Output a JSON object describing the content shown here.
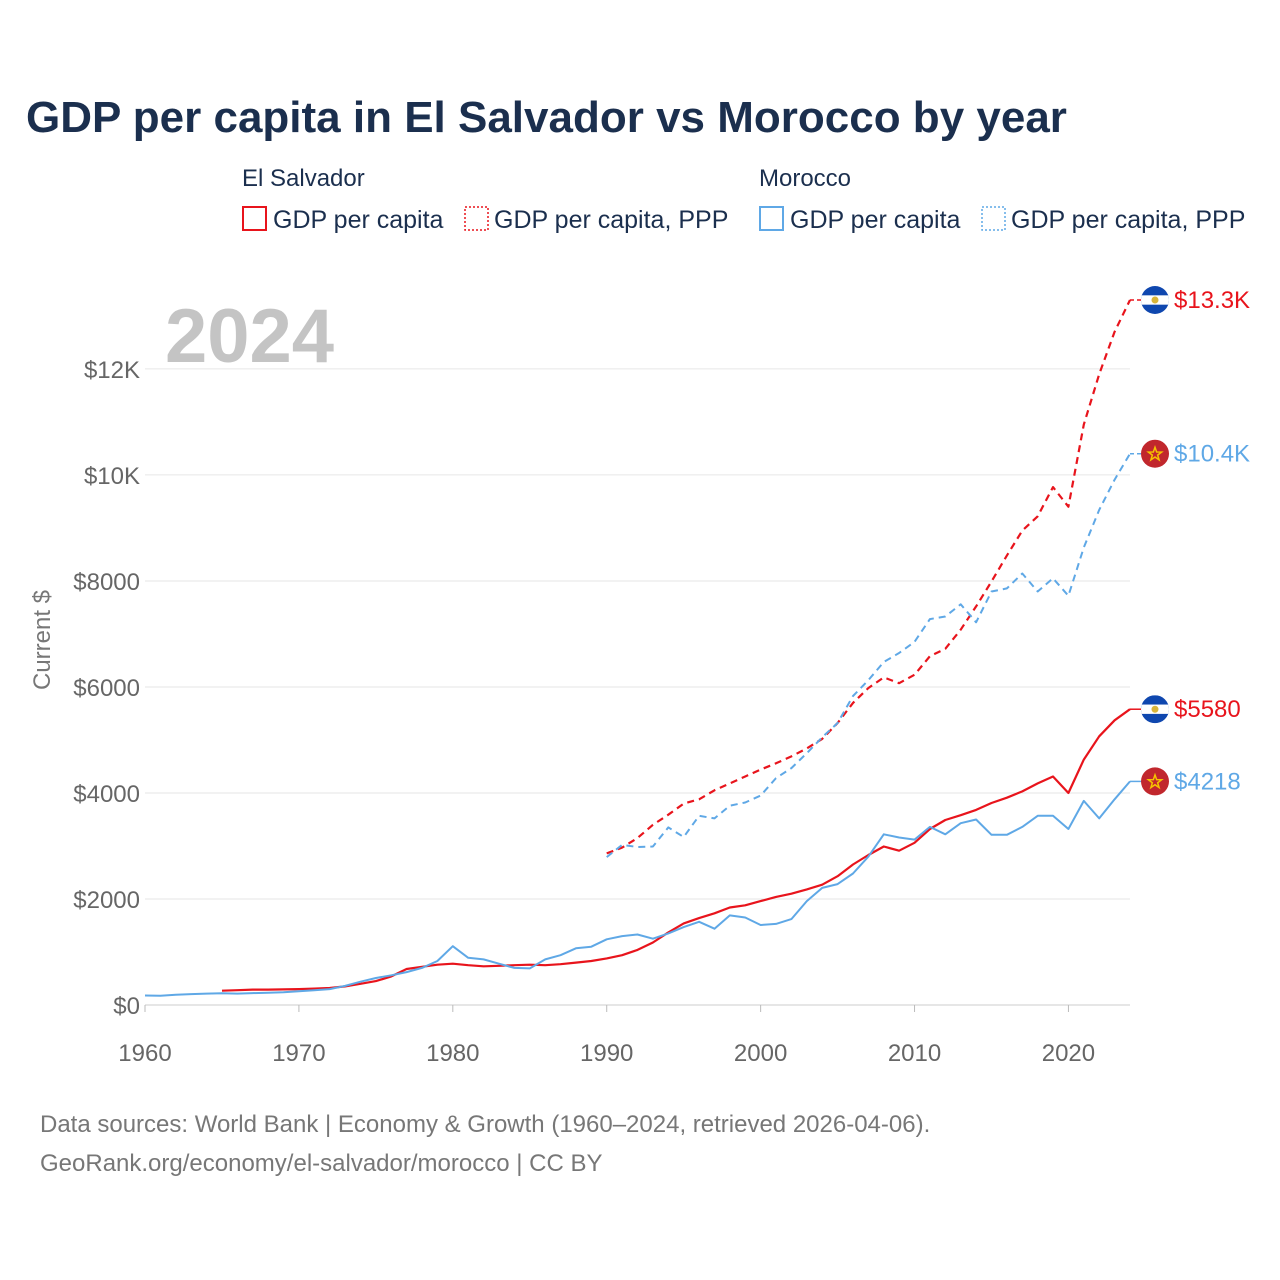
{
  "title": "GDP per capita in El Salvador vs Morocco by year",
  "watermark_year": "2024",
  "legend": {
    "groups": [
      {
        "name": "El Salvador",
        "items": [
          "GDP per capita",
          "GDP per capita, PPP"
        ],
        "color": "#e8141c"
      },
      {
        "name": "Morocco",
        "items": [
          "GDP per capita",
          "GDP per capita, PPP"
        ],
        "color": "#5fa8e6"
      }
    ]
  },
  "end_labels": [
    {
      "text": "$13.3K",
      "series": "El Salvador PPP"
    },
    {
      "text": "$10.4K",
      "series": "Morocco PPP"
    },
    {
      "text": "$5580",
      "series": "El Salvador GDP"
    },
    {
      "text": "$4218",
      "series": "Morocco GDP"
    }
  ],
  "source_lines": [
    "Data sources: World Bank | Economy & Growth (1960–2024, retrieved 2026-04-06).",
    "GeoRank.org/economy/el-salvador/morocco | CC BY"
  ],
  "colors": {
    "el_salvador": "#e8141c",
    "morocco": "#5fa8e6"
  },
  "chart_data": {
    "type": "line",
    "title": "GDP per capita in El Salvador vs Morocco by year",
    "xlabel": "",
    "ylabel": "Current $",
    "xlim": [
      1960,
      2024
    ],
    "ylim": [
      0,
      13300
    ],
    "x_ticks": [
      1960,
      1970,
      1980,
      1990,
      2000,
      2010,
      2020
    ],
    "x_tick_labels": [
      "1960",
      "1970",
      "1980",
      "1990",
      "2000",
      "2010",
      "2020"
    ],
    "y_ticks": [
      0,
      2000,
      4000,
      6000,
      8000,
      10000,
      12000
    ],
    "y_tick_labels": [
      "$0",
      "$2000",
      "$4000",
      "$6000",
      "$8000",
      "$10K",
      "$12K"
    ],
    "grid": true,
    "series": [
      {
        "name": "El Salvador GDP per capita",
        "country": "El Salvador",
        "dashed": false,
        "color": "#e8141c",
        "x": [
          1965,
          1966,
          1967,
          1968,
          1969,
          1970,
          1971,
          1972,
          1973,
          1974,
          1975,
          1976,
          1977,
          1978,
          1979,
          1980,
          1981,
          1982,
          1983,
          1984,
          1985,
          1986,
          1987,
          1988,
          1989,
          1990,
          1991,
          1992,
          1993,
          1994,
          1995,
          1996,
          1997,
          1998,
          1999,
          2000,
          2001,
          2002,
          2003,
          2004,
          2005,
          2006,
          2007,
          2008,
          2009,
          2010,
          2011,
          2012,
          2013,
          2014,
          2015,
          2016,
          2017,
          2018,
          2019,
          2020,
          2021,
          2022,
          2023,
          2024
        ],
        "y": [
          270,
          280,
          290,
          290,
          295,
          300,
          310,
          320,
          350,
          400,
          450,
          540,
          680,
          720,
          760,
          780,
          750,
          730,
          740,
          750,
          760,
          750,
          770,
          800,
          830,
          880,
          940,
          1040,
          1180,
          1370,
          1540,
          1640,
          1730,
          1840,
          1880,
          1960,
          2040,
          2100,
          2180,
          2270,
          2430,
          2650,
          2830,
          2990,
          2910,
          3060,
          3320,
          3490,
          3580,
          3680,
          3810,
          3910,
          4030,
          4180,
          4310,
          4000,
          4630,
          5070,
          5370,
          5580
        ]
      },
      {
        "name": "El Salvador GDP per capita, PPP",
        "country": "El Salvador",
        "dashed": true,
        "color": "#e8141c",
        "x": [
          1990,
          1991,
          1992,
          1993,
          1994,
          1995,
          1996,
          1997,
          1998,
          1999,
          2000,
          2001,
          2002,
          2003,
          2004,
          2005,
          2006,
          2007,
          2008,
          2009,
          2010,
          2011,
          2012,
          2013,
          2014,
          2015,
          2016,
          2017,
          2018,
          2019,
          2020,
          2021,
          2022,
          2023,
          2024
        ],
        "y": [
          2860,
          2970,
          3150,
          3400,
          3590,
          3800,
          3880,
          4050,
          4180,
          4310,
          4440,
          4560,
          4690,
          4840,
          5020,
          5320,
          5700,
          5980,
          6180,
          6070,
          6230,
          6580,
          6720,
          7080,
          7520,
          7990,
          8480,
          8950,
          9220,
          9770,
          9400,
          10950,
          11900,
          12700,
          13300
        ]
      },
      {
        "name": "Morocco GDP per capita",
        "country": "Morocco",
        "dashed": false,
        "color": "#5fa8e6",
        "x": [
          1960,
          1961,
          1962,
          1963,
          1964,
          1965,
          1966,
          1967,
          1968,
          1969,
          1970,
          1971,
          1972,
          1973,
          1974,
          1975,
          1976,
          1977,
          1978,
          1979,
          1980,
          1981,
          1982,
          1983,
          1984,
          1985,
          1986,
          1987,
          1988,
          1989,
          1990,
          1991,
          1992,
          1993,
          1994,
          1995,
          1996,
          1997,
          1998,
          1999,
          2000,
          2001,
          2002,
          2003,
          2004,
          2005,
          2006,
          2007,
          2008,
          2009,
          2010,
          2011,
          2012,
          2013,
          2014,
          2015,
          2016,
          2017,
          2018,
          2019,
          2020,
          2021,
          2022,
          2023,
          2024
        ],
        "y": [
          180,
          175,
          195,
          205,
          215,
          220,
          215,
          225,
          230,
          240,
          260,
          280,
          300,
          360,
          440,
          510,
          560,
          620,
          700,
          830,
          1110,
          890,
          860,
          780,
          700,
          690,
          860,
          940,
          1070,
          1100,
          1240,
          1300,
          1330,
          1250,
          1350,
          1470,
          1570,
          1440,
          1690,
          1650,
          1510,
          1530,
          1620,
          1960,
          2210,
          2280,
          2480,
          2800,
          3220,
          3160,
          3120,
          3360,
          3220,
          3430,
          3500,
          3210,
          3210,
          3360,
          3570,
          3570,
          3320,
          3850,
          3520,
          3880,
          4218
        ]
      },
      {
        "name": "Morocco GDP per capita, PPP",
        "country": "Morocco",
        "dashed": true,
        "color": "#5fa8e6",
        "x": [
          1990,
          1991,
          1992,
          1993,
          1994,
          1995,
          1996,
          1997,
          1998,
          1999,
          2000,
          2001,
          2002,
          2003,
          2004,
          2005,
          2006,
          2007,
          2008,
          2009,
          2010,
          2011,
          2012,
          2013,
          2014,
          2015,
          2016,
          2017,
          2018,
          2019,
          2020,
          2021,
          2022,
          2023,
          2024
        ],
        "y": [
          2790,
          3020,
          2980,
          2990,
          3350,
          3170,
          3570,
          3520,
          3760,
          3820,
          3950,
          4280,
          4470,
          4750,
          5050,
          5320,
          5830,
          6130,
          6470,
          6640,
          6850,
          7280,
          7330,
          7560,
          7220,
          7800,
          7860,
          8140,
          7800,
          8050,
          7720,
          8630,
          9340,
          9910,
          10400
        ]
      }
    ]
  }
}
